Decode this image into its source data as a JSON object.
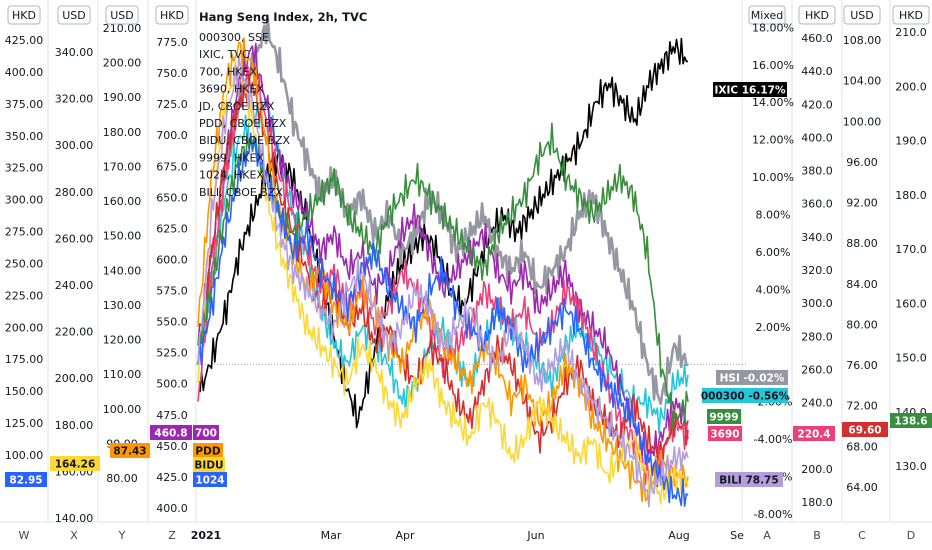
{
  "legend": {
    "title": "Hang Seng Index, 2h, TVC",
    "items": [
      "000300, SSE",
      "IXIC, TVC",
      "700, HKEX",
      "3690, HKEX",
      "JD, CBOE BZX",
      "PDD, CBOE BZX",
      "BIDU, CBOE BZX",
      "9999, HKEX",
      "1024, HKEX",
      "BILI, CBOE BZX"
    ]
  },
  "colors": {
    "hsi": "#9598a1",
    "csi": "#26c6da",
    "ixic": "#000000",
    "t700": "#9c27b0",
    "m3690": "#ec407a",
    "jd": "#d32f2f",
    "pdd": "#ff9800",
    "bidu": "#fdd835",
    "n9999": "#388e3c",
    "k1024": "#2962ff",
    "bili": "#b39ddb"
  },
  "chart_data": {
    "type": "line",
    "x_labels": [
      "2021",
      "Mar",
      "Apr",
      "Jun",
      "Aug",
      "Se"
    ],
    "mixed_axis": {
      "unit": "Mixed",
      "ticks": [
        "18.00%",
        "16.00%",
        "14.00%",
        "12.00%",
        "10.00%",
        "8.00%",
        "6.00%",
        "4.00%",
        "2.00%",
        "-2.00%",
        "-4.00%",
        "-6.00%",
        "-8.00%"
      ],
      "range": [
        -8,
        18.5
      ]
    },
    "left_axes": [
      {
        "letter": "W",
        "unit": "HKD",
        "ticks": [
          "425.00",
          "400.00",
          "375.00",
          "350.00",
          "325.00",
          "300.00",
          "275.00",
          "250.00",
          "225.00",
          "200.00",
          "175.00",
          "150.00",
          "125.00",
          "100.00"
        ]
      },
      {
        "letter": "X",
        "unit": "USD",
        "ticks": [
          "340.00",
          "320.00",
          "300.00",
          "280.00",
          "260.00",
          "240.00",
          "220.00",
          "200.00",
          "180.00",
          "160.00",
          "140.00"
        ]
      },
      {
        "letter": "Y",
        "unit": "USD",
        "ticks": [
          "210.00",
          "200.00",
          "190.00",
          "180.00",
          "170.00",
          "160.00",
          "150.00",
          "140.00",
          "130.00",
          "120.00",
          "110.00",
          "100.00",
          "90.00",
          "80.00"
        ]
      },
      {
        "letter": "Z",
        "unit": "HKD",
        "ticks": [
          "775.0",
          "750.0",
          "725.0",
          "700.0",
          "675.0",
          "650.0",
          "625.0",
          "600.0",
          "575.0",
          "550.0",
          "525.0",
          "500.0",
          "475.0",
          "450.0",
          "425.0",
          "400.0"
        ]
      }
    ],
    "right_axes": [
      {
        "letter": "A",
        "unit": "Mixed"
      },
      {
        "letter": "B",
        "unit": "HKD",
        "ticks": [
          "460.0",
          "440.0",
          "420.0",
          "400.0",
          "380.0",
          "360.0",
          "340.0",
          "320.0",
          "300.0",
          "280.0",
          "260.0",
          "240.0",
          "220.0",
          "200.0",
          "180.0"
        ]
      },
      {
        "letter": "C",
        "unit": "USD",
        "ticks": [
          "108.00",
          "104.00",
          "100.00",
          "96.00",
          "92.00",
          "88.00",
          "84.00",
          "80.00",
          "76.00",
          "72.00",
          "68.00",
          "64.00"
        ]
      },
      {
        "letter": "D",
        "unit": "HKD",
        "ticks": [
          "210.0",
          "200.0",
          "190.0",
          "180.0",
          "170.0",
          "160.0",
          "150.0",
          "140.0",
          "130.0"
        ]
      }
    ],
    "series": [
      {
        "name": "IXIC",
        "values_pct": [
          -1.5,
          0.5,
          3,
          6,
          8,
          10,
          11,
          10,
          8,
          5,
          2,
          -1,
          -3,
          0,
          3,
          5,
          6,
          7,
          6,
          4,
          3,
          5,
          7,
          8,
          7,
          8,
          9,
          10,
          11,
          12,
          14,
          15,
          14,
          13,
          15,
          16,
          17,
          16.17
        ]
      },
      {
        "name": "HSI",
        "values_pct": [
          0,
          4,
          10,
          14,
          16,
          18,
          16,
          13,
          11,
          9,
          10,
          8,
          9,
          7,
          8,
          6,
          7,
          9,
          8,
          6,
          7,
          8,
          6,
          5,
          6,
          4,
          5,
          6,
          8,
          9,
          7,
          5,
          3,
          0,
          -2,
          1,
          -0.02
        ]
      },
      {
        "name": "000300",
        "values_pct": [
          0,
          5,
          9,
          12,
          13,
          14,
          11,
          8,
          6,
          3,
          1,
          0,
          2,
          1,
          0,
          -2,
          -1,
          1,
          2,
          0,
          -1,
          1,
          3,
          2,
          1,
          0,
          -1,
          1,
          2,
          1,
          0,
          -1,
          -2,
          -2,
          -3,
          -1,
          -0.56
        ]
      },
      {
        "name": "700",
        "values_pct": [
          1,
          6,
          11,
          15,
          17,
          14,
          11,
          9,
          8,
          6,
          7,
          5,
          6,
          4,
          5,
          7,
          8,
          6,
          4,
          5,
          6,
          7,
          5,
          4,
          5,
          3,
          4,
          5,
          3,
          2,
          1,
          -1,
          -3,
          -5,
          -4,
          -2,
          -3
        ]
      },
      {
        "name": "3690",
        "values_pct": [
          -2,
          5,
          10,
          14,
          16,
          13,
          10,
          8,
          6,
          4,
          5,
          3,
          4,
          2,
          3,
          5,
          4,
          2,
          0,
          1,
          2,
          4,
          3,
          2,
          3,
          1,
          2,
          4,
          3,
          1,
          -1,
          -3,
          -4,
          -6,
          -5,
          -3,
          -4
        ]
      },
      {
        "name": "JD",
        "values_pct": [
          0,
          6,
          11,
          14,
          15,
          12,
          9,
          7,
          5,
          3,
          4,
          2,
          3,
          1,
          2,
          0,
          -1,
          1,
          0,
          -2,
          -3,
          -1,
          1,
          0,
          -2,
          -4,
          -3,
          -1,
          0,
          -2,
          -3,
          -4,
          -2,
          -4,
          -5,
          -3,
          -3.5
        ]
      },
      {
        "name": "PDD",
        "values_pct": [
          2,
          10,
          15,
          17,
          16,
          12,
          8,
          6,
          4,
          5,
          3,
          2,
          4,
          3,
          1,
          0,
          2,
          3,
          1,
          0,
          -1,
          1,
          0,
          -2,
          -1,
          -3,
          -2,
          0,
          -1,
          -3,
          -4,
          -5,
          -6,
          -7,
          -5,
          -6,
          -6
        ]
      },
      {
        "name": "BIDU",
        "values_pct": [
          -1,
          8,
          14,
          16,
          13,
          9,
          6,
          4,
          2,
          1,
          0,
          -1,
          1,
          0,
          -2,
          -3,
          -1,
          0,
          -2,
          -3,
          -4,
          -2,
          -3,
          -5,
          -4,
          -2,
          -3,
          -4,
          -5,
          -4,
          -6,
          -5,
          -4,
          -6,
          -7,
          -6,
          -6.5
        ]
      },
      {
        "name": "9999",
        "values_pct": [
          1,
          4,
          8,
          11,
          12,
          10,
          8,
          7,
          8,
          9,
          10,
          8,
          7,
          6,
          8,
          9,
          10,
          9,
          8,
          7,
          6,
          5,
          7,
          8,
          9,
          11,
          12,
          10,
          9,
          8,
          9,
          10,
          9,
          6,
          0,
          -3,
          -2
        ]
      },
      {
        "name": "1024",
        "values_pct": [
          0,
          3,
          7,
          10,
          12,
          10,
          8,
          6,
          7,
          5,
          4,
          3,
          5,
          6,
          4,
          3,
          2,
          4,
          5,
          3,
          2,
          1,
          3,
          2,
          0,
          1,
          2,
          3,
          2,
          0,
          -1,
          -2,
          -3,
          -5,
          -6,
          -7,
          -7
        ]
      },
      {
        "name": "BILI",
        "values_pct": [
          0,
          8,
          13,
          16,
          14,
          10,
          7,
          5,
          4,
          3,
          2,
          4,
          5,
          3,
          1,
          2,
          4,
          3,
          1,
          2,
          3,
          1,
          0,
          2,
          1,
          -1,
          0,
          1,
          -1,
          -2,
          -3,
          -4,
          -5,
          -7,
          -6,
          -5,
          -5
        ]
      }
    ],
    "value_tags": [
      {
        "text": "IXIC",
        "value": "16.17%"
      },
      {
        "text": "HSI",
        "value": "-0.02%"
      },
      {
        "text": "000300",
        "value": "-0.56%"
      },
      {
        "text": "9999",
        "value": ""
      },
      {
        "text": "3690",
        "value": ""
      },
      {
        "text": "BILI",
        "value": "78.75"
      },
      {
        "text": "",
        "value": "220.4"
      },
      {
        "text": "",
        "value": "69.60"
      },
      {
        "text": "",
        "value": "138.6"
      },
      {
        "text": "",
        "value": "82.95"
      },
      {
        "text": "",
        "value": "164.26"
      },
      {
        "text": "",
        "value": "87.43"
      },
      {
        "text": "",
        "value": "460.8"
      },
      {
        "text": "700",
        "value": ""
      },
      {
        "text": "PDD",
        "value": ""
      },
      {
        "text": "BIDU",
        "value": ""
      },
      {
        "text": "1024",
        "value": ""
      }
    ]
  }
}
